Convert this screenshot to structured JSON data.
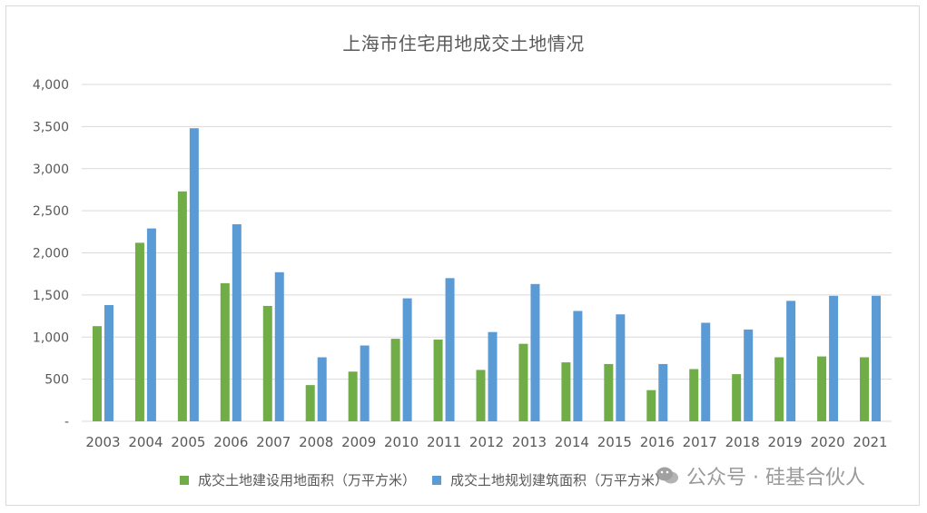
{
  "chart_data": {
    "type": "bar",
    "title": "上海市住宅用地成交土地情况",
    "categories": [
      "2003",
      "2004",
      "2005",
      "2006",
      "2007",
      "2008",
      "2009",
      "2010",
      "2011",
      "2012",
      "2013",
      "2014",
      "2015",
      "2016",
      "2017",
      "2018",
      "2019",
      "2020",
      "2021"
    ],
    "series": [
      {
        "name": "成交土地建设用地面积（万平方米）",
        "color": "#70ad47",
        "values": [
          1130,
          2120,
          2730,
          1640,
          1370,
          430,
          590,
          980,
          970,
          610,
          920,
          700,
          680,
          370,
          620,
          560,
          760,
          770,
          760
        ]
      },
      {
        "name": "成交土地规划建筑面积（万平方米）",
        "color": "#5b9bd5",
        "values": [
          1380,
          2290,
          3480,
          2340,
          1770,
          760,
          900,
          1460,
          1700,
          1060,
          1630,
          1310,
          1270,
          680,
          1170,
          1090,
          1430,
          1490,
          1490
        ]
      }
    ],
    "yticks": [
      "-",
      "500",
      "1,000",
      "1,500",
      "2,000",
      "2,500",
      "3,000",
      "3,500",
      "4,000"
    ],
    "ylim": [
      0,
      4000
    ],
    "grid": true,
    "legend_position": "bottom"
  },
  "watermark": {
    "icon": "wechat-icon",
    "text": "公众号 · 硅基合伙人"
  }
}
